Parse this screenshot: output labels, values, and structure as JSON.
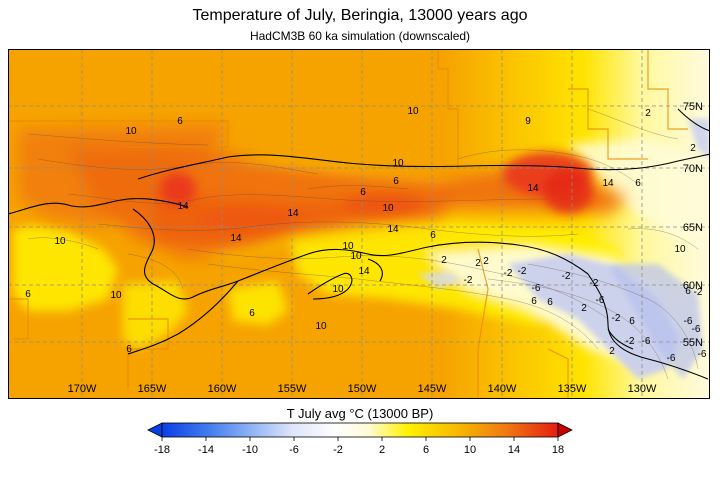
{
  "title": "Temperature of July, Beringia, 13000 years ago",
  "subtitle": "HadCM3B 60 ka simulation (downscaled)",
  "map": {
    "lon_labels": [
      "170W",
      "165W",
      "160W",
      "155W",
      "150W",
      "145W",
      "140W",
      "135W",
      "130W"
    ],
    "lat_labels": [
      "75N",
      "70N",
      "65N",
      "60N",
      "55N"
    ],
    "contour_labels": [
      "10",
      "6",
      "10",
      "9",
      "2",
      "2",
      "6",
      "10",
      "14",
      "14",
      "14",
      "6",
      "14",
      "10",
      "14",
      "14",
      "6",
      "10",
      "10",
      "14",
      "6",
      "10",
      "6",
      "10",
      "6",
      "2",
      "2",
      "-2",
      "-2",
      "2",
      "-2",
      "-6",
      "10",
      "10",
      "-2",
      "6",
      "10",
      "6",
      "2",
      "-2",
      "-6",
      "-2",
      "-2",
      "6",
      "6",
      "-6",
      "-2",
      "-6",
      "-6",
      "6",
      "2",
      "-6",
      "-6"
    ],
    "colors": {
      "background": "#f6a300",
      "warm": "#f06a10",
      "hot": "#e93a1e",
      "yellow": "#fff200",
      "light": "#fffbd8",
      "cold": "#c6ccf0",
      "ocean": "#f8ad10",
      "grid": "#8c8c8c",
      "coast": "#000000"
    }
  },
  "colorbar": {
    "label": "T July avg °C (13000 BP)",
    "ticks": [
      "-18",
      "-14",
      "-10",
      "-6",
      "-2",
      "2",
      "6",
      "10",
      "14",
      "18"
    ],
    "colors": [
      "#0b3fe6",
      "#3e78ee",
      "#8bb1f4",
      "#dfe5fb",
      "#ffffff",
      "#fffbd8",
      "#fff200",
      "#f7b700",
      "#f07812",
      "#e51e10",
      "#c80000"
    ]
  }
}
